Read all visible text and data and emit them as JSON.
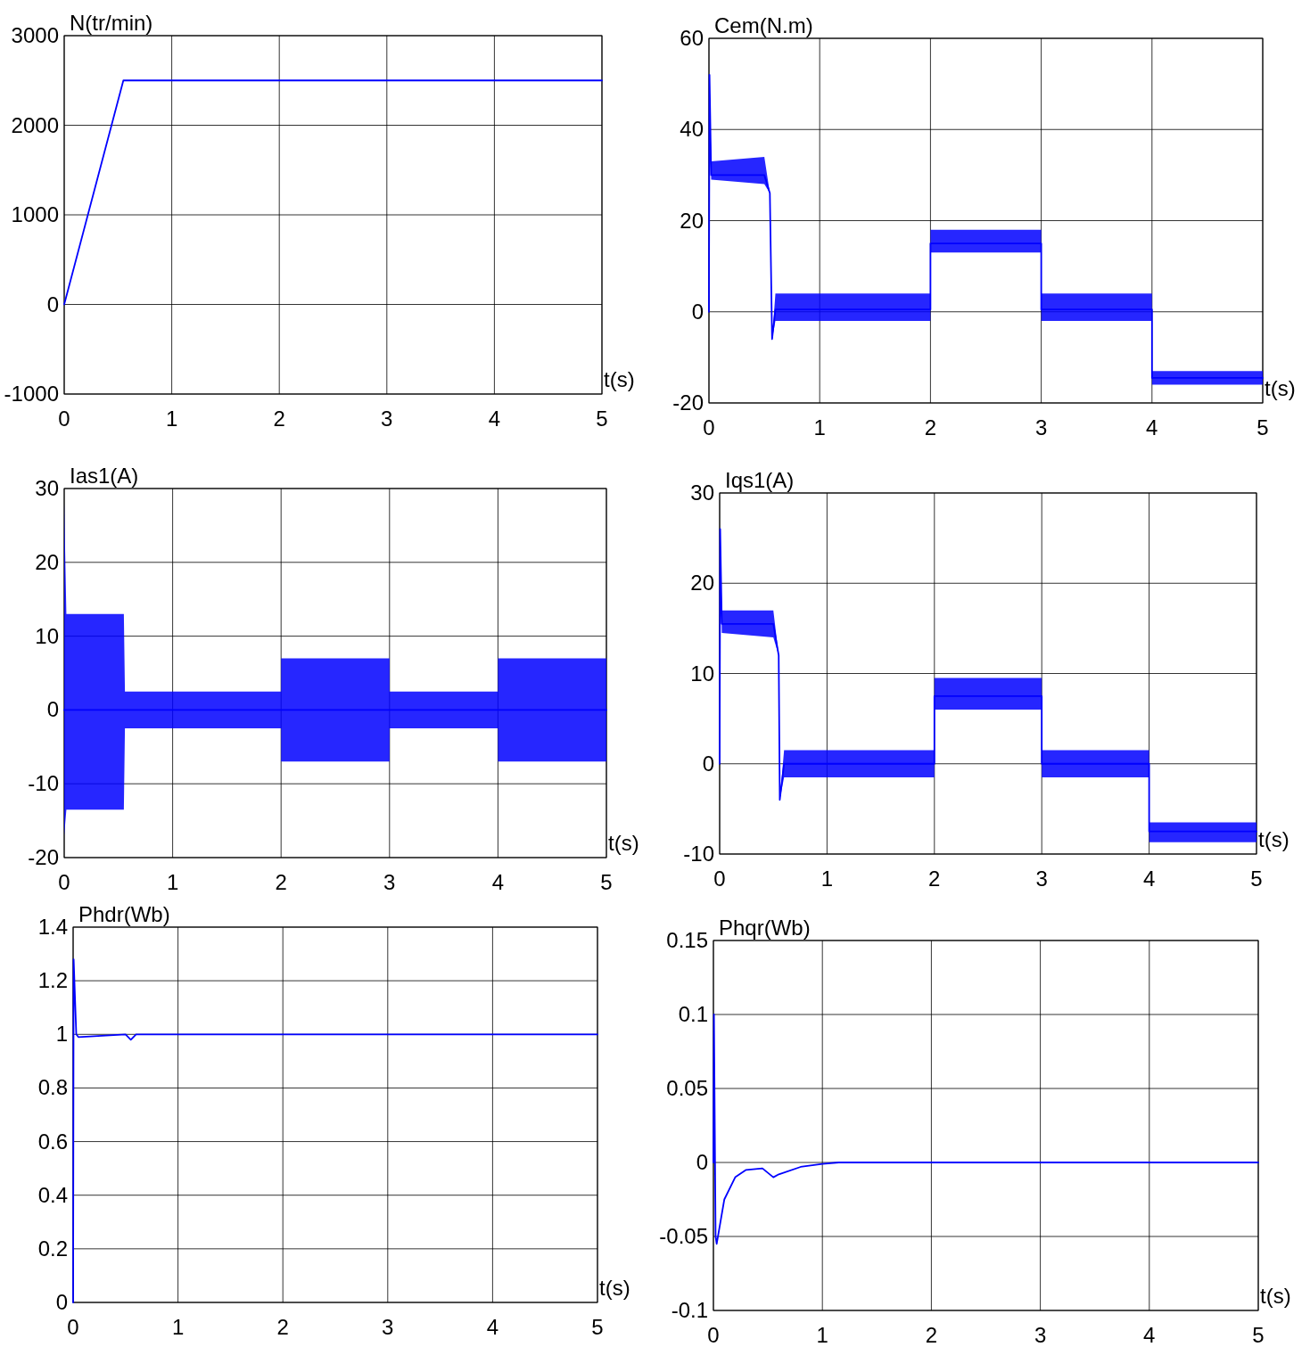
{
  "chart_data": [
    {
      "type": "line",
      "ylabel": "N(tr/min)",
      "xlabel": "t(s)",
      "xlim": [
        0,
        5
      ],
      "ylim": [
        -1000,
        3000
      ],
      "xticks": [
        0,
        1,
        2,
        3,
        4,
        5
      ],
      "yticks": [
        -1000,
        0,
        1000,
        2000,
        3000
      ],
      "grid": true,
      "series": [
        {
          "color": "#0000ff",
          "x": [
            0,
            0.55,
            5
          ],
          "values": [
            0,
            2500,
            2500
          ]
        }
      ]
    },
    {
      "type": "line",
      "ylabel": "Cem(N.m)",
      "xlabel": "t(s)",
      "xlim": [
        0,
        5
      ],
      "ylim": [
        -20,
        60
      ],
      "xticks": [
        0,
        1,
        2,
        3,
        4,
        5
      ],
      "yticks": [
        -20,
        0,
        20,
        40,
        60
      ],
      "grid": true,
      "series": [
        {
          "color": "#0000ff",
          "x": [
            0,
            0.005,
            0.02,
            0.5,
            0.55,
            0.57,
            0.6,
            2,
            2,
            3,
            3,
            4,
            4,
            5
          ],
          "values": [
            0,
            52,
            30,
            30,
            26,
            -6,
            0.5,
            0.5,
            15,
            15,
            0.5,
            0.5,
            -14.5,
            -14.5
          ],
          "lower": [
            0,
            52,
            29,
            28,
            26,
            -6,
            -2,
            -2,
            13,
            13,
            -2,
            -2,
            -16,
            -16
          ],
          "upper": [
            0,
            52,
            33,
            34,
            26,
            -6,
            4,
            4,
            18,
            18,
            4,
            4,
            -13,
            -13
          ]
        }
      ]
    },
    {
      "type": "line",
      "ylabel": "Ias1(A)",
      "xlabel": "t(s)",
      "xlim": [
        0,
        5
      ],
      "ylim": [
        -20,
        30
      ],
      "xticks": [
        0,
        1,
        2,
        3,
        4,
        5
      ],
      "yticks": [
        -20,
        -10,
        0,
        10,
        20,
        30
      ],
      "grid": true,
      "series": [
        {
          "color": "#0000ff",
          "x": [
            0,
            0.02,
            0.55,
            0.56,
            2,
            2,
            3,
            3,
            4,
            4,
            5
          ],
          "values": [
            0,
            0,
            0,
            0,
            0,
            0,
            0,
            0,
            0,
            0,
            0
          ],
          "lower": [
            -17,
            -13.5,
            -13.5,
            -2.5,
            -2.5,
            -7,
            -7,
            -2.5,
            -2.5,
            -7,
            -7
          ],
          "upper": [
            28,
            13,
            13,
            2.5,
            2.5,
            7,
            7,
            2.5,
            2.5,
            7,
            7
          ]
        }
      ]
    },
    {
      "type": "line",
      "ylabel": "Iqs1(A)",
      "xlabel": "t(s)",
      "xlim": [
        0,
        5
      ],
      "ylim": [
        -10,
        30
      ],
      "xticks": [
        0,
        1,
        2,
        3,
        4,
        5
      ],
      "yticks": [
        -10,
        0,
        10,
        20,
        30
      ],
      "grid": true,
      "series": [
        {
          "color": "#0000ff",
          "x": [
            0,
            0.005,
            0.02,
            0.5,
            0.55,
            0.56,
            0.6,
            2,
            2,
            3,
            3,
            4,
            4,
            5
          ],
          "values": [
            0,
            26,
            15.5,
            15.5,
            12,
            -4,
            0,
            0,
            7.5,
            7.5,
            0,
            0,
            -7.5,
            -7.5
          ],
          "lower": [
            0,
            26,
            14.5,
            14,
            12,
            -4,
            -1.5,
            -1.5,
            6,
            6,
            -1.5,
            -1.5,
            -8.7,
            -8.7
          ],
          "upper": [
            0,
            26,
            17,
            17,
            12,
            -4,
            1.5,
            1.5,
            9.5,
            9.5,
            1.5,
            1.5,
            -6.5,
            -6.5
          ]
        }
      ]
    },
    {
      "type": "line",
      "ylabel": "Phdr(Wb)",
      "xlabel": "t(s)",
      "xlim": [
        0,
        5
      ],
      "ylim": [
        0,
        1.4
      ],
      "xticks": [
        0,
        1,
        2,
        3,
        4,
        5
      ],
      "yticks": [
        0,
        0.2,
        0.4,
        0.6,
        0.8,
        1,
        1.2,
        1.4
      ],
      "grid": true,
      "series": [
        {
          "color": "#0000ff",
          "x": [
            0,
            0.005,
            0.03,
            0.05,
            0.5,
            0.55,
            0.6,
            5
          ],
          "values": [
            0,
            1.28,
            1,
            0.99,
            1,
            0.98,
            1,
            1
          ]
        }
      ]
    },
    {
      "type": "line",
      "ylabel": "Phqr(Wb)",
      "xlabel": "t(s)",
      "xlim": [
        0,
        5
      ],
      "ylim": [
        -0.1,
        0.15
      ],
      "xticks": [
        0,
        1,
        2,
        3,
        4,
        5
      ],
      "yticks": [
        -0.1,
        -0.05,
        0,
        0.05,
        0.1,
        0.15
      ],
      "grid": true,
      "series": [
        {
          "color": "#0000ff",
          "x": [
            0,
            0.005,
            0.02,
            0.03,
            0.1,
            0.2,
            0.3,
            0.45,
            0.55,
            0.6,
            0.8,
            1,
            1.15,
            5
          ],
          "values": [
            0,
            0.1,
            -0.05,
            -0.055,
            -0.025,
            -0.01,
            -0.005,
            -0.004,
            -0.01,
            -0.008,
            -0.003,
            -0.001,
            0,
            0
          ]
        }
      ]
    }
  ]
}
